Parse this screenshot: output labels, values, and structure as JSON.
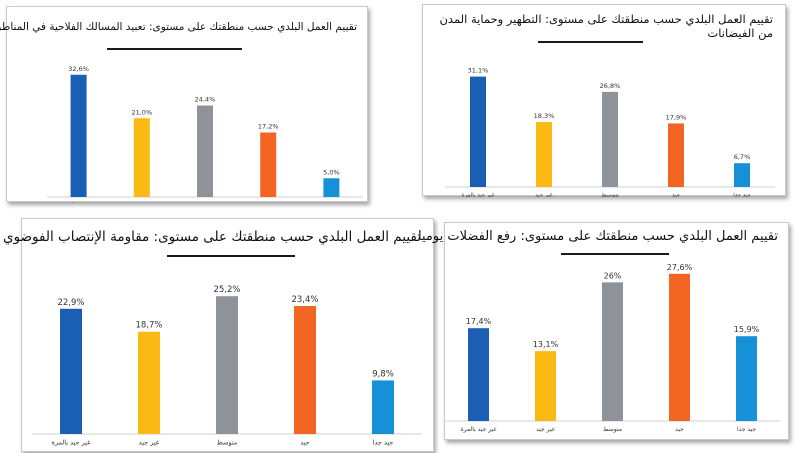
{
  "colors": {
    "c1": "#1a5fb4",
    "c2": "#fbb914",
    "c3": "#8e9399",
    "c4": "#f26522",
    "c5": "#1690d6"
  },
  "chart_data": [
    {
      "type": "bar",
      "title": "تقييم العمل البلدي حسب منطقتك على مستوى: تعبيد المسالك الفلاحية في المناطق الريفية",
      "categories": [
        "غير جيد بالمرة",
        "غير جيد",
        "متوسط",
        "جيد",
        "جيد جدا"
      ],
      "values": [
        32.6,
        21.0,
        24.4,
        17.2,
        5.0
      ],
      "labels": [
        "32,6%",
        "21,0%",
        "24,4%",
        "17,2%",
        "5,0%"
      ],
      "ylim": [
        0,
        40
      ],
      "legend": "none"
    },
    {
      "type": "bar",
      "title": "تقييم العمل البلدي حسب منطقتك على مستوى: التطهير وحماية المدن من الفيضانات",
      "categories": [
        "غير جيد بالمرة",
        "غير جيد",
        "متوسط",
        "جيد",
        "جيد جدا"
      ],
      "values": [
        31.1,
        18.3,
        26.8,
        17.9,
        6.7
      ],
      "labels": [
        "31,1%",
        "18,3%",
        "26,8%",
        "17,9%",
        "6,7%"
      ],
      "ylim": [
        0,
        40
      ],
      "legend": "none"
    },
    {
      "type": "bar",
      "title": "تقييم العمل البلدي حسب منطقتك على مستوى: مقاومة الإنتصاب الفوضوي",
      "categories": [
        "غير جيد بالمرة",
        "غير جيد",
        "متوسط",
        "جيد",
        "جيد جدا"
      ],
      "values": [
        22.9,
        18.7,
        25.2,
        23.4,
        9.8
      ],
      "labels": [
        "22,9%",
        "18,7%",
        "25,2%",
        "23,4%",
        "9,8%"
      ],
      "ylim": [
        0,
        32
      ],
      "legend": "none"
    },
    {
      "type": "bar",
      "title": "تقييم العمل البلدي حسب منطقتك على مستوى: رفع الفضلات يوميا",
      "categories": [
        "غير جيد بالمرة",
        "غير جيد",
        "متوسط",
        "جيد",
        "جيد جدا"
      ],
      "values": [
        17.4,
        13.1,
        26,
        27.6,
        15.9
      ],
      "labels": [
        "17,4%",
        "13,1%",
        "26%",
        "27,6%",
        "15,9%"
      ],
      "ylim": [
        0,
        30
      ],
      "legend": "none"
    }
  ]
}
